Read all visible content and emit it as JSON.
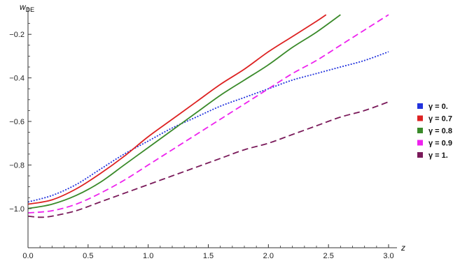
{
  "chart_data": {
    "type": "line",
    "ylabel": "w",
    "ylabel_sub": "DE",
    "xlabel": "z",
    "xlim": [
      0,
      3.0
    ],
    "ylim": [
      -1.18,
      -0.1
    ],
    "xticks": [
      0.0,
      0.5,
      1.0,
      1.5,
      2.0,
      2.5,
      3.0
    ],
    "xtick_labels": [
      "0.0",
      "0.5",
      "1.0",
      "1.5",
      "2.0",
      "2.5",
      "3.0"
    ],
    "yticks": [
      -1.0,
      -0.8,
      -0.6,
      -0.4,
      -0.2
    ],
    "ytick_labels": [
      "-1.0",
      "-0.8",
      "-0.6",
      "-0.4",
      "-0.2"
    ],
    "legend_position": "right",
    "series": [
      {
        "name": "γ = 0.",
        "color": "#2233dd",
        "dash": "dotted",
        "x": [
          0,
          0.2,
          0.4,
          0.6,
          0.8,
          1.0,
          1.2,
          1.4,
          1.6,
          1.8,
          2.0,
          2.2,
          2.4,
          2.6,
          2.8,
          3.0
        ],
        "y": [
          -0.97,
          -0.94,
          -0.89,
          -0.82,
          -0.75,
          -0.69,
          -0.63,
          -0.58,
          -0.53,
          -0.49,
          -0.45,
          -0.41,
          -0.38,
          -0.35,
          -0.32,
          -0.28
        ]
      },
      {
        "name": "γ = 0.7",
        "color": "#dd2222",
        "dash": "solid",
        "x": [
          0,
          0.2,
          0.4,
          0.6,
          0.8,
          1.0,
          1.2,
          1.4,
          1.6,
          1.8,
          2.0,
          2.2,
          2.4,
          2.48
        ],
        "y": [
          -0.98,
          -0.96,
          -0.91,
          -0.84,
          -0.76,
          -0.67,
          -0.59,
          -0.51,
          -0.43,
          -0.36,
          -0.28,
          -0.21,
          -0.14,
          -0.11
        ]
      },
      {
        "name": "γ = 0.8",
        "color": "#3a8a2a",
        "dash": "solid",
        "x": [
          0,
          0.2,
          0.4,
          0.6,
          0.8,
          1.0,
          1.2,
          1.4,
          1.6,
          1.8,
          2.0,
          2.2,
          2.4,
          2.6
        ],
        "y": [
          -1.0,
          -0.98,
          -0.94,
          -0.88,
          -0.8,
          -0.72,
          -0.64,
          -0.56,
          -0.48,
          -0.41,
          -0.34,
          -0.26,
          -0.19,
          -0.11
        ]
      },
      {
        "name": "γ = 0.9",
        "color": "#ee22ee",
        "dash": "dashed",
        "x": [
          0,
          0.2,
          0.4,
          0.6,
          0.8,
          1.0,
          1.2,
          1.4,
          1.6,
          1.8,
          2.0,
          2.2,
          2.4,
          2.6,
          2.8,
          3.0
        ],
        "y": [
          -1.02,
          -1.01,
          -0.98,
          -0.93,
          -0.87,
          -0.8,
          -0.73,
          -0.66,
          -0.59,
          -0.52,
          -0.45,
          -0.38,
          -0.32,
          -0.25,
          -0.18,
          -0.11
        ]
      },
      {
        "name": "γ = 1.",
        "color": "#7a1a5a",
        "dash": "dashed",
        "x": [
          0,
          0.1,
          0.2,
          0.4,
          0.6,
          0.8,
          1.0,
          1.2,
          1.4,
          1.6,
          1.8,
          2.0,
          2.2,
          2.4,
          2.6,
          2.8,
          3.0
        ],
        "y": [
          -1.035,
          -1.04,
          -1.035,
          -1.01,
          -0.97,
          -0.93,
          -0.89,
          -0.85,
          -0.81,
          -0.77,
          -0.73,
          -0.7,
          -0.66,
          -0.62,
          -0.58,
          -0.55,
          -0.51
        ]
      }
    ]
  }
}
